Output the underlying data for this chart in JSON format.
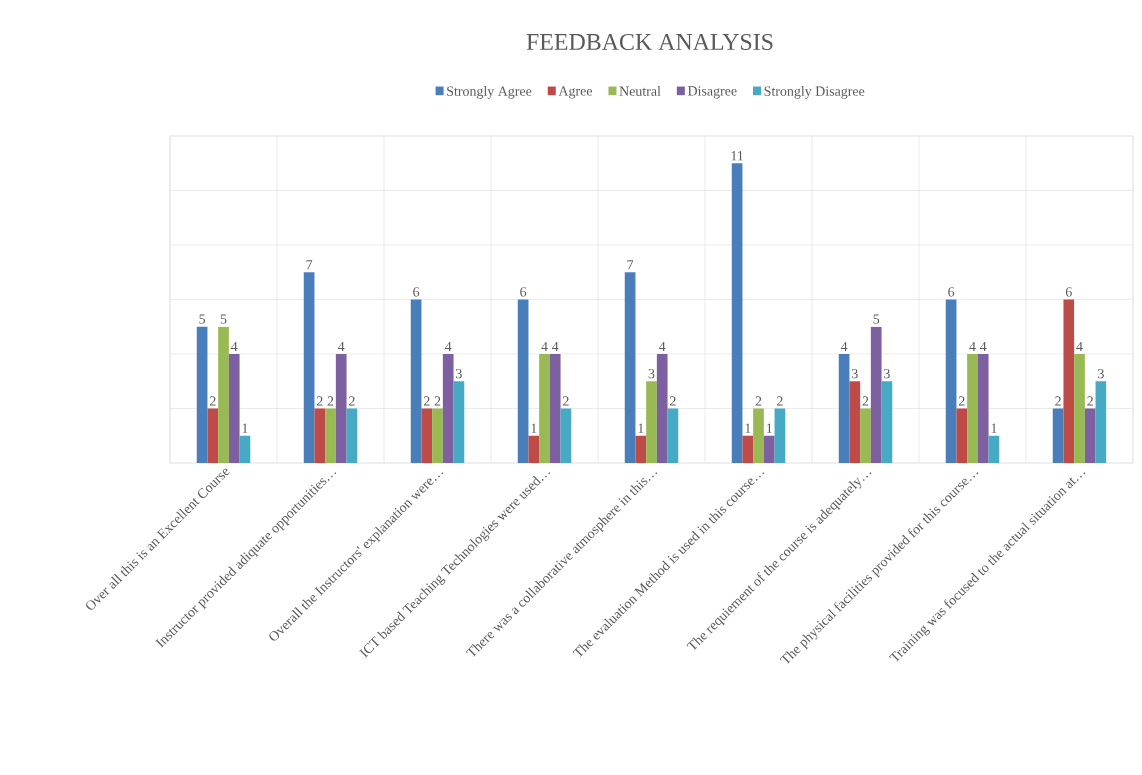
{
  "chart_data": {
    "type": "bar",
    "title": "FEEDBACK ANALYSIS",
    "categories": [
      "Over all this is an Excellent Course",
      "Instructor provided adiquate opportunities…",
      "Overall the Instructors' explanation were…",
      "ICT based Teaching Technologies were used…",
      "There was a collaborative atmosphere in this…",
      "The evaluation Method is used in this course…",
      "The requiement of the course is adequately…",
      "The physical facilities provided for this course…",
      "Training was focused to the actual situation at…"
    ],
    "series": [
      {
        "name": "Strongly Agree",
        "color": "#4a7ebb",
        "values": [
          5,
          7,
          6,
          6,
          7,
          11,
          4,
          6,
          2
        ]
      },
      {
        "name": "Agree",
        "color": "#be4b48",
        "values": [
          2,
          2,
          2,
          1,
          1,
          1,
          3,
          2,
          6
        ]
      },
      {
        "name": "Neutral",
        "color": "#98b954",
        "values": [
          5,
          2,
          2,
          4,
          3,
          2,
          2,
          4,
          4
        ]
      },
      {
        "name": "Disagree",
        "color": "#7d60a0",
        "values": [
          4,
          4,
          4,
          4,
          4,
          1,
          5,
          4,
          2
        ]
      },
      {
        "name": "Strongly Disagree",
        "color": "#46aac5",
        "values": [
          1,
          2,
          3,
          2,
          2,
          2,
          3,
          1,
          3
        ]
      }
    ],
    "ylim": [
      0,
      12
    ],
    "yticks": [
      {
        "value": 0,
        "label": null
      },
      {
        "value": 2,
        "label": null
      },
      {
        "value": 4,
        "label": null
      },
      {
        "value": 6,
        "label": null
      },
      {
        "value": 8,
        "label": null
      },
      {
        "value": 10,
        "label": null
      },
      {
        "value": 12,
        "label": null
      }
    ],
    "tick_labels": "x",
    "grid": true,
    "legend": "top",
    "data_labels": true
  }
}
